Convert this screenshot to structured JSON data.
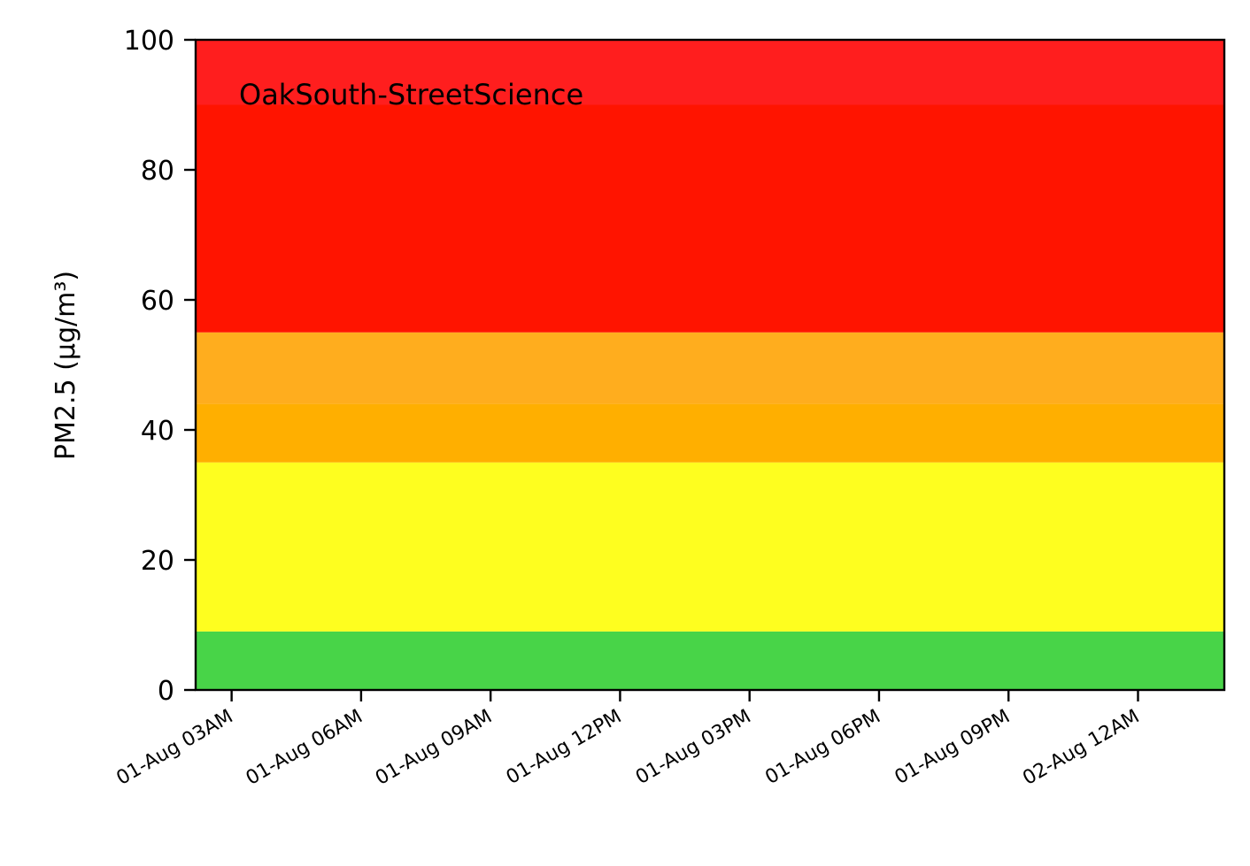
{
  "chart_data": {
    "type": "area",
    "title": "",
    "annotation": "OakSouth-StreetScience",
    "xlabel": "",
    "ylabel": "PM2.5 (µg/m³)",
    "ylim": [
      0,
      100
    ],
    "y_ticks": [
      0,
      20,
      40,
      60,
      80,
      100
    ],
    "x_range": [
      "2019-08-01 02:10",
      "2019-08-02 02:00"
    ],
    "x_ticks": [
      {
        "time": "2019-08-01 03:00",
        "label": "01-Aug 03AM"
      },
      {
        "time": "2019-08-01 06:00",
        "label": "01-Aug 06AM"
      },
      {
        "time": "2019-08-01 09:00",
        "label": "01-Aug 09AM"
      },
      {
        "time": "2019-08-01 12:00",
        "label": "01-Aug 12PM"
      },
      {
        "time": "2019-08-01 15:00",
        "label": "01-Aug 03PM"
      },
      {
        "time": "2019-08-01 18:00",
        "label": "01-Aug 06PM"
      },
      {
        "time": "2019-08-01 21:00",
        "label": "01-Aug 09PM"
      },
      {
        "time": "2019-08-02 00:00",
        "label": "02-Aug 12AM"
      }
    ],
    "bands": [
      {
        "y0": 0,
        "y1": 9,
        "color": "#48d448"
      },
      {
        "y0": 9,
        "y1": 35,
        "color": "#fefe1f"
      },
      {
        "y0": 35,
        "y1": 44,
        "color": "#ffaf00"
      },
      {
        "y0": 44,
        "y1": 55,
        "color": "#ffad1e"
      },
      {
        "y0": 55,
        "y1": 90,
        "color": "#ff1400"
      },
      {
        "y0": 90,
        "y1": 100,
        "color": "#ff1e1e"
      }
    ],
    "series": [],
    "grid": false
  }
}
